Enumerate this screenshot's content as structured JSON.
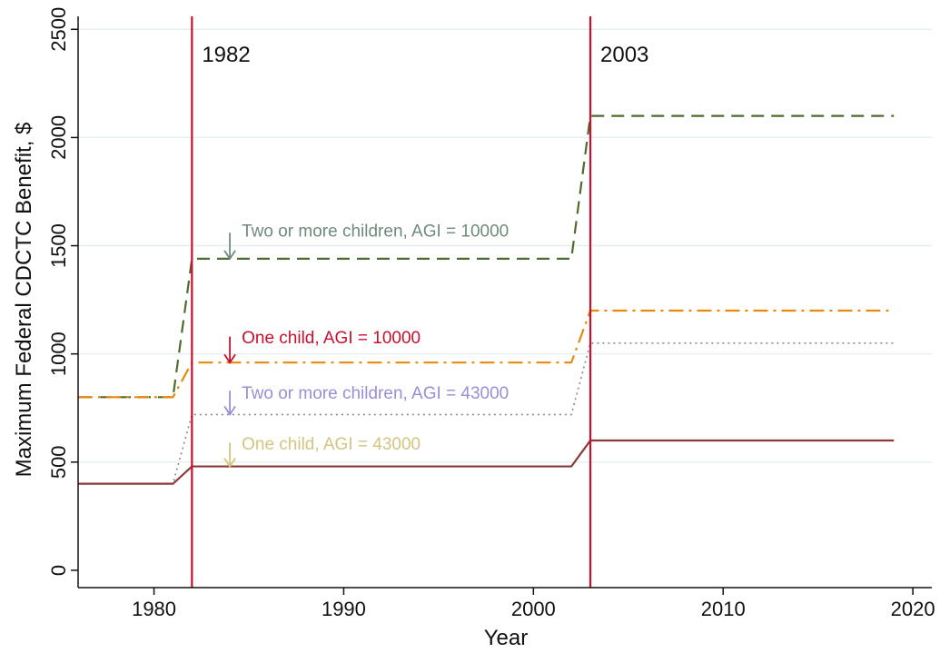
{
  "chart_data": {
    "type": "line",
    "xlabel": "Year",
    "ylabel": "Maximum Federal CDCTC Benefit, $",
    "xlim": [
      1976,
      2021
    ],
    "ylim": [
      -80,
      2560
    ],
    "xticks": [
      1980,
      1990,
      2000,
      2010,
      2020
    ],
    "yticks": [
      0,
      500,
      1000,
      1500,
      2000,
      2500
    ],
    "grid": true,
    "vlines": [
      {
        "x": 1982,
        "label": "1982",
        "color": "#c8102e"
      },
      {
        "x": 2003,
        "label": "2003",
        "color": "#c8102e"
      }
    ],
    "series": [
      {
        "style": "dash",
        "color": "#4e6b2f",
        "x": [
          1976,
          1981,
          1982,
          2002,
          2003,
          2019
        ],
        "y": [
          800,
          800,
          1440,
          1440,
          2100,
          2100
        ]
      },
      {
        "style": "dashdot",
        "color": "#e8890c",
        "x": [
          1976,
          1981,
          1982,
          2002,
          2003,
          2019
        ],
        "y": [
          800,
          800,
          960,
          960,
          1200,
          1200
        ]
      },
      {
        "style": "dot",
        "color": "#888888",
        "x": [
          1976,
          1981,
          1982,
          2002,
          2003,
          2019
        ],
        "y": [
          400,
          400,
          720,
          720,
          1050,
          1050
        ]
      },
      {
        "style": "solid",
        "color": "#8b3a3a",
        "x": [
          1976,
          1981,
          1982,
          2002,
          2003,
          2019
        ],
        "y": [
          400,
          400,
          480,
          480,
          600,
          600
        ]
      }
    ],
    "annotations": [
      {
        "text": "Two or more children, AGI = 10000",
        "arrow_x": 1984,
        "arrow_top": 1560,
        "arrow_bottom": 1440,
        "label_y": 1560,
        "color": "#6e8b7c"
      },
      {
        "text": "One child, AGI = 10000",
        "arrow_x": 1984,
        "arrow_top": 1080,
        "arrow_bottom": 960,
        "label_y": 1065,
        "color": "#c8102e"
      },
      {
        "text": "Two or more children, AGI = 43000",
        "arrow_x": 1984,
        "arrow_top": 830,
        "arrow_bottom": 720,
        "label_y": 810,
        "color": "#9b8ed6"
      },
      {
        "text": "One child, AGI = 43000",
        "arrow_x": 1984,
        "arrow_top": 590,
        "arrow_bottom": 480,
        "label_y": 575,
        "color": "#d4c47e"
      }
    ]
  }
}
